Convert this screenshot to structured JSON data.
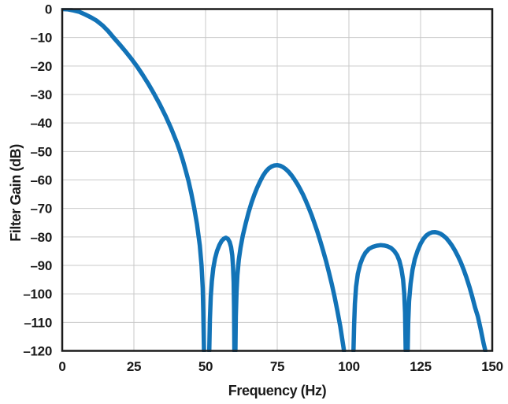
{
  "chart_data": {
    "type": "line",
    "title": "",
    "xlabel": "Frequency (Hz)",
    "ylabel": "Filter Gain (dB)",
    "xlim": [
      0,
      150
    ],
    "ylim": [
      -120,
      0
    ],
    "x_ticks": [
      0,
      25,
      50,
      75,
      100,
      125,
      150
    ],
    "x_tick_labels": [
      "0",
      "25",
      "50",
      "75",
      "100",
      "125",
      "150"
    ],
    "y_ticks": [
      0,
      -10,
      -20,
      -30,
      -40,
      -50,
      -60,
      -70,
      -80,
      -90,
      -100,
      -110,
      -120
    ],
    "y_tick_labels": [
      "0",
      "–10",
      "–20",
      "–30",
      "–40",
      "–50",
      "–60",
      "–70",
      "–80",
      "–90",
      "–100",
      "–110",
      "–120"
    ],
    "grid": true,
    "legend": "none",
    "line_color": "#1273B7",
    "notch_frequencies_hz": [
      50,
      60,
      100,
      120,
      147.5
    ],
    "sidelobe_peaks": [
      {
        "hz": 57,
        "db": -80.3
      },
      {
        "hz": 75,
        "db": -54.8
      },
      {
        "hz": 112,
        "db": -82.9
      },
      {
        "hz": 130,
        "db": -78.3
      }
    ],
    "series": [
      {
        "name": "filter-gain",
        "segments": [
          [
            [
              0,
              0
            ],
            [
              2,
              -0.1
            ],
            [
              4,
              -0.5
            ],
            [
              6,
              -1.0
            ],
            [
              8,
              -1.9
            ],
            [
              10,
              -2.9
            ],
            [
              12,
              -4.1
            ],
            [
              14,
              -5.7
            ],
            [
              16,
              -7.7
            ],
            [
              18,
              -10.1
            ],
            [
              20,
              -12.4
            ],
            [
              22,
              -14.8
            ],
            [
              24,
              -17.3
            ],
            [
              26,
              -20.0
            ],
            [
              28,
              -23.0
            ],
            [
              30,
              -26.2
            ],
            [
              32,
              -29.7
            ],
            [
              34,
              -33.4
            ],
            [
              36,
              -37.4
            ],
            [
              38,
              -41.9
            ],
            [
              40,
              -46.9
            ],
            [
              41,
              -49.7
            ],
            [
              42,
              -52.9
            ],
            [
              43,
              -56.4
            ],
            [
              44,
              -60.2
            ],
            [
              45,
              -64.6
            ],
            [
              46,
              -69.6
            ],
            [
              47,
              -75.5
            ],
            [
              48,
              -83.0
            ],
            [
              48.6,
              -90.0
            ],
            [
              49.0,
              -98.0
            ],
            [
              49.2,
              -106.0
            ],
            [
              49.45,
              -120
            ]
          ],
          [
            [
              51.3,
              -120
            ],
            [
              51.5,
              -109
            ],
            [
              51.8,
              -101
            ],
            [
              52.2,
              -95.5
            ],
            [
              52.7,
              -91.0
            ],
            [
              53.3,
              -87.6
            ],
            [
              54.0,
              -84.9
            ],
            [
              54.8,
              -82.9
            ],
            [
              55.6,
              -81.4
            ],
            [
              56.4,
              -80.6
            ],
            [
              57.1,
              -80.3
            ],
            [
              57.8,
              -80.7
            ],
            [
              58.4,
              -81.8
            ],
            [
              58.9,
              -83.6
            ],
            [
              59.3,
              -86.5
            ],
            [
              59.6,
              -90.5
            ],
            [
              59.8,
              -96.0
            ],
            [
              59.95,
              -105.0
            ],
            [
              60.05,
              -120
            ]
          ],
          [
            [
              60.4,
              -120
            ],
            [
              60.55,
              -108
            ],
            [
              60.8,
              -99.5
            ],
            [
              61.1,
              -93.5
            ],
            [
              61.6,
              -88.0
            ],
            [
              62.2,
              -83.8
            ],
            [
              63,
              -79.5
            ],
            [
              64,
              -75.2
            ],
            [
              65,
              -71.4
            ],
            [
              66,
              -68.1
            ],
            [
              67,
              -65.2
            ],
            [
              68,
              -62.7
            ],
            [
              69,
              -60.5
            ],
            [
              70,
              -58.6
            ],
            [
              71,
              -57.1
            ],
            [
              72,
              -56.0
            ],
            [
              73,
              -55.3
            ],
            [
              74,
              -54.9
            ],
            [
              75,
              -54.8
            ],
            [
              76,
              -55.0
            ],
            [
              77,
              -55.5
            ],
            [
              78,
              -56.2
            ],
            [
              79,
              -57.2
            ],
            [
              80,
              -58.4
            ],
            [
              81,
              -59.8
            ],
            [
              82,
              -61.4
            ],
            [
              83,
              -63.2
            ],
            [
              84,
              -65.2
            ],
            [
              85,
              -67.4
            ],
            [
              86,
              -69.8
            ],
            [
              87,
              -72.4
            ],
            [
              88,
              -75.2
            ],
            [
              89,
              -78.2
            ],
            [
              90,
              -81.4
            ],
            [
              91,
              -84.8
            ],
            [
              92,
              -88.4
            ],
            [
              93,
              -92.3
            ],
            [
              94,
              -96.5
            ],
            [
              95,
              -101.0
            ],
            [
              96,
              -106.0
            ],
            [
              97,
              -111.5
            ],
            [
              98,
              -118.0
            ],
            [
              98.3,
              -120
            ]
          ],
          [
            [
              101.6,
              -120
            ],
            [
              101.8,
              -111
            ],
            [
              102.1,
              -103.5
            ],
            [
              102.5,
              -97.5
            ],
            [
              103.1,
              -93.0
            ],
            [
              103.9,
              -89.7
            ],
            [
              104.8,
              -87.3
            ],
            [
              105.8,
              -85.5
            ],
            [
              107,
              -84.2
            ],
            [
              108.3,
              -83.5
            ],
            [
              109.7,
              -83.1
            ],
            [
              111,
              -82.9
            ],
            [
              112.3,
              -83.0
            ],
            [
              113.5,
              -83.3
            ],
            [
              114.7,
              -83.9
            ],
            [
              115.8,
              -84.9
            ],
            [
              116.8,
              -86.4
            ],
            [
              117.6,
              -88.4
            ],
            [
              118.3,
              -91.2
            ],
            [
              118.9,
              -95.0
            ],
            [
              119.3,
              -100.0
            ],
            [
              119.6,
              -106.5
            ],
            [
              119.8,
              -120
            ]
          ],
          [
            [
              120.5,
              -120
            ],
            [
              120.7,
              -110
            ],
            [
              121.0,
              -102.5
            ],
            [
              121.5,
              -96.5
            ],
            [
              122.2,
              -91.5
            ],
            [
              123,
              -87.8
            ],
            [
              124,
              -84.7
            ],
            [
              125,
              -82.4
            ],
            [
              126,
              -80.7
            ],
            [
              127,
              -79.5
            ],
            [
              128,
              -78.8
            ],
            [
              129,
              -78.4
            ],
            [
              130,
              -78.3
            ],
            [
              131,
              -78.5
            ],
            [
              132,
              -78.9
            ],
            [
              133,
              -79.6
            ],
            [
              134,
              -80.5
            ],
            [
              135,
              -81.7
            ],
            [
              136,
              -83.1
            ],
            [
              137,
              -84.8
            ],
            [
              138,
              -86.7
            ],
            [
              139,
              -88.9
            ],
            [
              140,
              -91.4
            ],
            [
              141,
              -94.2
            ],
            [
              142,
              -97.4
            ],
            [
              143,
              -100.9
            ],
            [
              144,
              -104.8
            ],
            [
              145,
              -108.0
            ],
            [
              146,
              -112.5
            ],
            [
              147,
              -117.5
            ],
            [
              147.6,
              -120
            ]
          ]
        ]
      }
    ]
  },
  "colors": {
    "line": "#1273B7",
    "grid": "#c9c9c9",
    "frame": "#1a1a1a",
    "text": "#1a1a1a",
    "background": "#ffffff"
  }
}
